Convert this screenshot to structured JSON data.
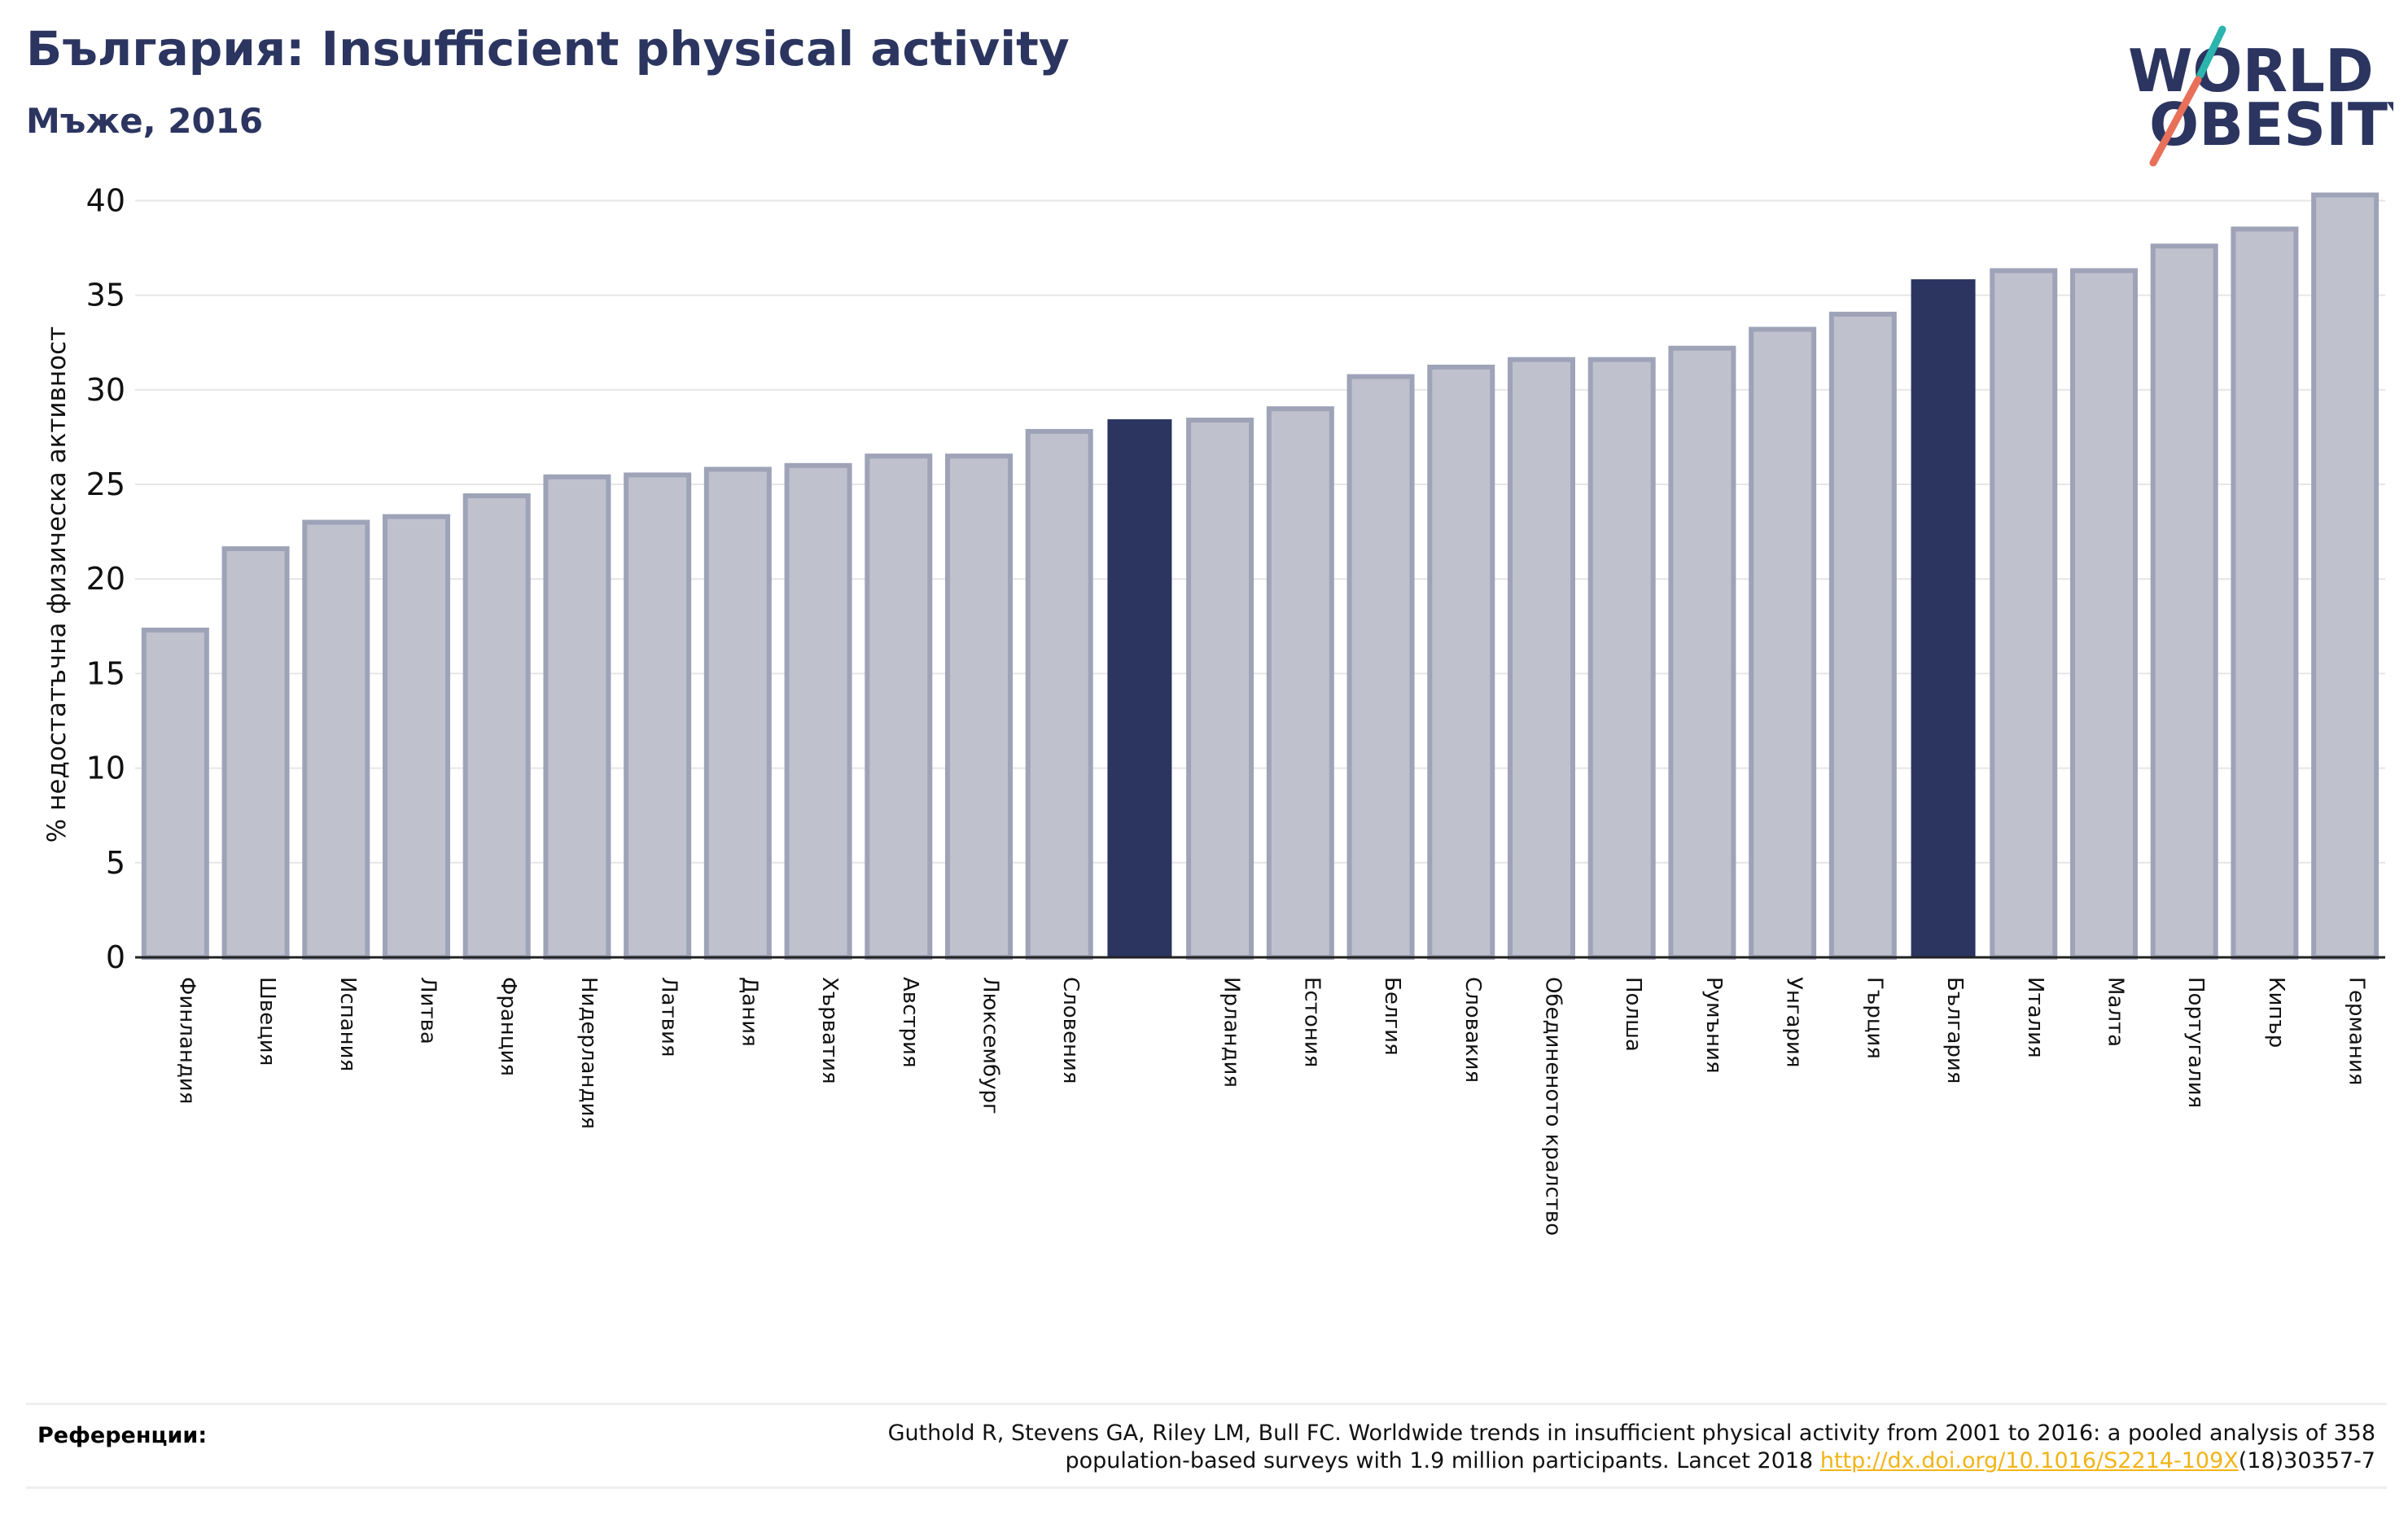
{
  "title": "България: Insufficient physical activity",
  "subtitle": "Мъже, 2016",
  "logo": {
    "line1": "WORLD",
    "line2": "OBESITY"
  },
  "colors": {
    "bar_fill": "#bfc1cd",
    "bar_stroke": "#9fa3b8",
    "highlight": "#2b3560",
    "title": "#2b3560",
    "logo_teal": "#2bb5ad",
    "logo_coral": "#e8705a",
    "link": "#f2b416"
  },
  "chart_data": {
    "type": "bar",
    "ylabel": "% недостатъчна физическа активност",
    "xlabel": "",
    "ylim": [
      0,
      42
    ],
    "yticks": [
      0,
      5,
      10,
      15,
      20,
      25,
      30,
      35,
      40
    ],
    "grid": true,
    "categories": [
      "Финландия",
      "Швеция",
      "Испания",
      "Литва",
      "Франция",
      "Нидерландия",
      "Латвия",
      "Дания",
      "Хърватия",
      "Австрия",
      "Люксембург",
      "Словения",
      "",
      "Ирландия",
      "Естония",
      "Белгия",
      "Словакия",
      "Обединеното кралство",
      "Полша",
      "Румъния",
      "Унгария",
      "Гърция",
      "България",
      "Италия",
      "Малта",
      "Португалия",
      "Кипър",
      "Германия"
    ],
    "values": [
      17.3,
      21.6,
      23.0,
      23.3,
      24.4,
      25.4,
      25.5,
      25.8,
      26.0,
      26.5,
      26.5,
      27.8,
      28.4,
      28.4,
      29.0,
      30.7,
      31.2,
      31.6,
      31.6,
      32.2,
      33.2,
      34.0,
      35.8,
      36.3,
      36.3,
      37.6,
      38.5,
      40.3
    ],
    "highlighted": [
      12,
      22
    ]
  },
  "references": {
    "label": "Референции:",
    "line1": "Guthold R, Stevens GA, Riley LM, Bull FC. Worldwide trends in insufficient physical activity from 2001 to 2016: a pooled analysis of 358",
    "line2_prefix": "population-based surveys with 1.9 million participants. Lancet 2018 ",
    "link": "http://dx.doi.org/10.1016/S2214-109X",
    "line2_suffix": "(18)30357-7"
  }
}
